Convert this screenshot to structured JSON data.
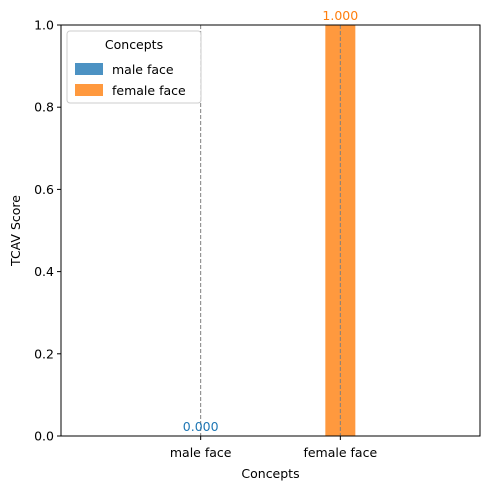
{
  "chart_data": {
    "type": "bar",
    "categories": [
      "male face",
      "female face"
    ],
    "series": [
      {
        "name": "male face",
        "values": [
          0.0,
          null
        ],
        "color": "#1f77b4",
        "label": "0.000"
      },
      {
        "name": "female face",
        "values": [
          null,
          1.0
        ],
        "color": "#ff7f0e",
        "label": "1.000"
      }
    ],
    "xlabel": "Concepts",
    "ylabel": "TCAV Score",
    "ylim": [
      0,
      1
    ],
    "yticks": [
      "0.0",
      "0.2",
      "0.4",
      "0.6",
      "0.8",
      "1.0"
    ],
    "grid": false,
    "reference_lines": "dashed gray vertical line at each category",
    "legend": {
      "title": "Concepts",
      "placement": "top-left",
      "entries": [
        "male face",
        "female face"
      ]
    }
  }
}
